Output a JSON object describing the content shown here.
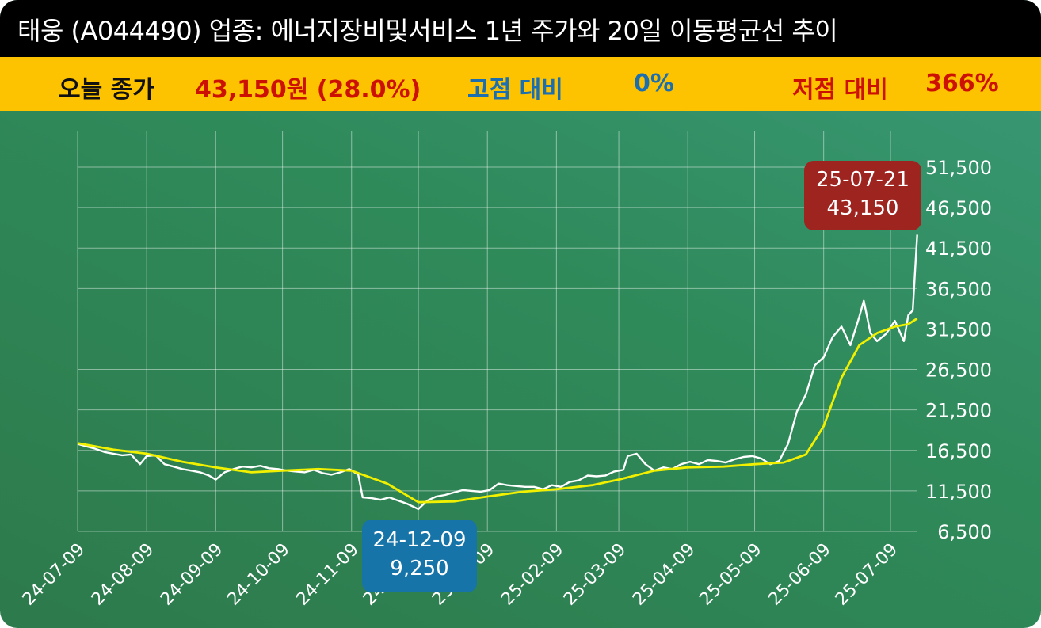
{
  "header": {
    "title": "태웅 (A044490) 업종: 에너지장비및서비스 1년 주가와 20일 이동평균선 추이"
  },
  "stats": {
    "close_label": "오늘 종가",
    "close_value": "43,150원 (28.0%)",
    "high_label": "고점 대비",
    "high_value": "0%",
    "low_label": "저점 대비",
    "low_value": "366%"
  },
  "colors": {
    "title_bg": "#000000",
    "stat_bg": "#fec300",
    "close_color": "#cc1100",
    "high_color": "#1b6fb0",
    "low_color": "#cc1100",
    "price_line": "#ffffff",
    "ma_line": "#f0f000",
    "high_badge": "#9e2420",
    "low_badge": "#1674a8"
  },
  "annotations": {
    "high_date": "25-07-21",
    "high_value": "43,150",
    "low_date": "24-12-09",
    "low_value": "9,250"
  },
  "chart_data": {
    "type": "line",
    "title": "태웅 (A044490) 업종: 에너지장비및서비스 1년 주가와 20일 이동평균선 추이",
    "x_tick_labels": [
      "24-07-09",
      "24-08-09",
      "24-09-09",
      "24-10-09",
      "24-11-09",
      "24-12-09",
      "25-01-09",
      "25-02-09",
      "25-03-09",
      "25-04-09",
      "25-05-09",
      "25-06-09",
      "25-07-09"
    ],
    "y_tick_labels": [
      "6,500",
      "11,500",
      "16,500",
      "21,500",
      "26,500",
      "31,500",
      "36,500",
      "41,500",
      "46,500",
      "51,500"
    ],
    "ylim": [
      6500,
      51500
    ],
    "xlim": [
      "2024-07-09",
      "2025-07-21"
    ],
    "grid": true,
    "series": [
      {
        "values_kind": "price",
        "points": [
          [
            "2024-07-09",
            17300
          ],
          [
            "2024-07-13",
            17000
          ],
          [
            "2024-07-17",
            16700
          ],
          [
            "2024-07-21",
            16300
          ],
          [
            "2024-07-25",
            16100
          ],
          [
            "2024-07-29",
            15900
          ],
          [
            "2024-08-02",
            16000
          ],
          [
            "2024-08-06",
            14800
          ],
          [
            "2024-08-09",
            15800
          ],
          [
            "2024-08-13",
            15900
          ],
          [
            "2024-08-17",
            14800
          ],
          [
            "2024-08-21",
            14500
          ],
          [
            "2024-08-25",
            14200
          ],
          [
            "2024-08-29",
            14000
          ],
          [
            "2024-09-02",
            13800
          ],
          [
            "2024-09-06",
            13400
          ],
          [
            "2024-09-09",
            12900
          ],
          [
            "2024-09-13",
            13800
          ],
          [
            "2024-09-17",
            14200
          ],
          [
            "2024-09-21",
            14500
          ],
          [
            "2024-09-25",
            14400
          ],
          [
            "2024-09-29",
            14600
          ],
          [
            "2024-10-03",
            14300
          ],
          [
            "2024-10-07",
            14200
          ],
          [
            "2024-10-11",
            14000
          ],
          [
            "2024-10-15",
            13900
          ],
          [
            "2024-10-19",
            13800
          ],
          [
            "2024-10-23",
            14100
          ],
          [
            "2024-10-27",
            13700
          ],
          [
            "2024-10-31",
            13500
          ],
          [
            "2024-11-04",
            13800
          ],
          [
            "2024-11-08",
            14200
          ],
          [
            "2024-11-12",
            13500
          ],
          [
            "2024-11-14",
            10700
          ],
          [
            "2024-11-18",
            10600
          ],
          [
            "2024-11-22",
            10400
          ],
          [
            "2024-11-26",
            10700
          ],
          [
            "2024-11-30",
            10300
          ],
          [
            "2024-12-04",
            9900
          ],
          [
            "2024-12-09",
            9250
          ],
          [
            "2024-12-13",
            10300
          ],
          [
            "2024-12-17",
            10800
          ],
          [
            "2024-12-21",
            11000
          ],
          [
            "2024-12-25",
            11300
          ],
          [
            "2024-12-29",
            11600
          ],
          [
            "2025-01-02",
            11500
          ],
          [
            "2025-01-06",
            11400
          ],
          [
            "2025-01-10",
            11600
          ],
          [
            "2025-01-14",
            12400
          ],
          [
            "2025-01-18",
            12200
          ],
          [
            "2025-01-22",
            12100
          ],
          [
            "2025-01-26",
            12000
          ],
          [
            "2025-01-30",
            12000
          ],
          [
            "2025-02-03",
            11700
          ],
          [
            "2025-02-07",
            12200
          ],
          [
            "2025-02-11",
            12000
          ],
          [
            "2025-02-15",
            12600
          ],
          [
            "2025-02-19",
            12800
          ],
          [
            "2025-02-23",
            13400
          ],
          [
            "2025-02-27",
            13300
          ],
          [
            "2025-03-03",
            13400
          ],
          [
            "2025-03-07",
            13900
          ],
          [
            "2025-03-11",
            14100
          ],
          [
            "2025-03-13",
            15800
          ],
          [
            "2025-03-17",
            16100
          ],
          [
            "2025-03-21",
            14800
          ],
          [
            "2025-03-25",
            14000
          ],
          [
            "2025-03-29",
            14400
          ],
          [
            "2025-04-02",
            14200
          ],
          [
            "2025-04-06",
            14800
          ],
          [
            "2025-04-10",
            15100
          ],
          [
            "2025-04-14",
            14800
          ],
          [
            "2025-04-18",
            15300
          ],
          [
            "2025-04-22",
            15200
          ],
          [
            "2025-04-26",
            15000
          ],
          [
            "2025-04-30",
            15400
          ],
          [
            "2025-05-04",
            15700
          ],
          [
            "2025-05-08",
            15800
          ],
          [
            "2025-05-12",
            15500
          ],
          [
            "2025-05-16",
            14800
          ],
          [
            "2025-05-20",
            15200
          ],
          [
            "2025-05-24",
            17300
          ],
          [
            "2025-05-28",
            21300
          ],
          [
            "2025-06-01",
            23400
          ],
          [
            "2025-06-05",
            27000
          ],
          [
            "2025-06-09",
            28000
          ],
          [
            "2025-06-13",
            30500
          ],
          [
            "2025-06-17",
            31800
          ],
          [
            "2025-06-21",
            29500
          ],
          [
            "2025-06-25",
            33000
          ],
          [
            "2025-06-27",
            35000
          ],
          [
            "2025-06-30",
            31000
          ],
          [
            "2025-07-03",
            30000
          ],
          [
            "2025-07-07",
            30900
          ],
          [
            "2025-07-11",
            32500
          ],
          [
            "2025-07-15",
            30000
          ],
          [
            "2025-07-17",
            33200
          ],
          [
            "2025-07-19",
            33800
          ],
          [
            "2025-07-21",
            43150
          ]
        ]
      },
      {
        "values_kind": "moving_average_20d",
        "points": [
          [
            "2024-07-09",
            17400
          ],
          [
            "2024-07-25",
            16600
          ],
          [
            "2024-08-09",
            16100
          ],
          [
            "2024-08-25",
            15100
          ],
          [
            "2024-09-09",
            14400
          ],
          [
            "2024-09-25",
            13800
          ],
          [
            "2024-10-09",
            14000
          ],
          [
            "2024-10-25",
            14200
          ],
          [
            "2024-11-09",
            14000
          ],
          [
            "2024-11-25",
            12400
          ],
          [
            "2024-12-09",
            10100
          ],
          [
            "2024-12-25",
            10200
          ],
          [
            "2025-01-09",
            10800
          ],
          [
            "2025-01-25",
            11400
          ],
          [
            "2025-02-09",
            11700
          ],
          [
            "2025-02-25",
            12200
          ],
          [
            "2025-03-09",
            12900
          ],
          [
            "2025-03-25",
            14000
          ],
          [
            "2025-04-09",
            14400
          ],
          [
            "2025-04-25",
            14500
          ],
          [
            "2025-05-09",
            14800
          ],
          [
            "2025-05-22",
            15000
          ],
          [
            "2025-06-01",
            16000
          ],
          [
            "2025-06-09",
            19500
          ],
          [
            "2025-06-17",
            25500
          ],
          [
            "2025-06-25",
            29500
          ],
          [
            "2025-07-03",
            31000
          ],
          [
            "2025-07-11",
            31800
          ],
          [
            "2025-07-17",
            32100
          ],
          [
            "2025-07-21",
            32800
          ]
        ]
      }
    ]
  }
}
